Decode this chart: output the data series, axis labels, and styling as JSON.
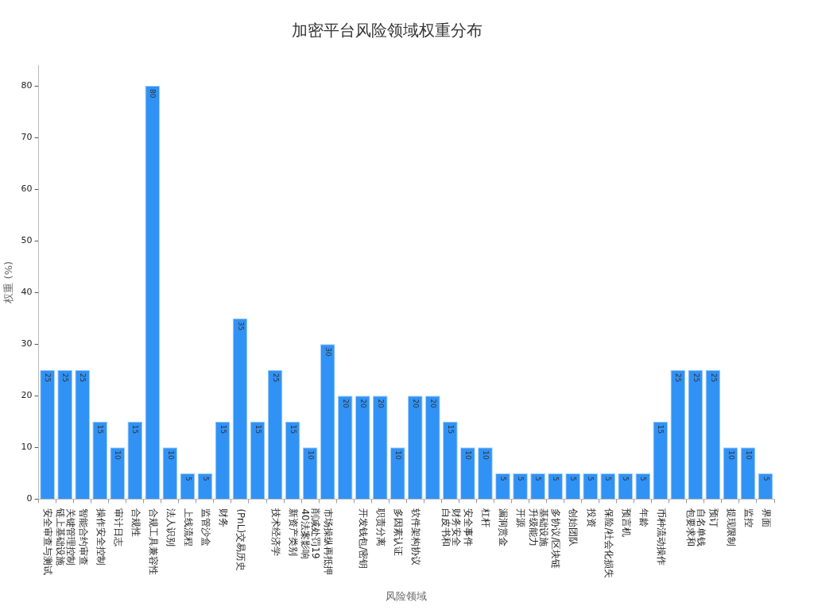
{
  "chart_data": {
    "type": "bar",
    "title": "加密平台风险领域权重分布",
    "xlabel": "风险领域",
    "ylabel": "权重 (%)",
    "categories": [
      "安全审查与测试",
      "关键管理控制链上基础设施",
      "智能合约审查",
      "操作安全控制",
      "审计日志",
      "合规性",
      "合规工具兼容性",
      "法人识别",
      "上线流程",
      "监管沙盒",
      "财务",
      "(PnL)交易历史",
      null,
      "技术经济学",
      "新资产类别",
      "削减处罚1940法案影响",
      "市场操纵再抵押",
      null,
      "开发钱包/密钥",
      "职责分离",
      "多因素认证",
      "软件架构协议",
      null,
      "财务安全白皮书和",
      "安全事件",
      "杠杆",
      "漏洞赏金",
      "开源",
      "基础设施升级能力",
      "多协议/区块链",
      "创始团队",
      "投资",
      "保险/社会化损失",
      "预言机",
      "年龄",
      "币种流动操作",
      null,
      "自名单钱包要求和",
      "预订",
      "提现限制",
      "监控",
      "界面"
    ],
    "values": [
      25,
      25,
      25,
      15,
      10,
      15,
      80,
      10,
      5,
      5,
      15,
      35,
      15,
      25,
      15,
      10,
      30,
      20,
      20,
      20,
      10,
      20,
      20,
      15,
      10,
      10,
      5,
      5,
      5,
      5,
      5,
      5,
      5,
      5,
      5,
      15,
      25,
      25,
      25,
      10,
      10,
      5
    ],
    "color": "#3192f5",
    "ylim": [
      0,
      84
    ],
    "yticks": [
      0,
      10,
      20,
      30,
      40,
      50,
      60,
      70,
      80
    ],
    "grid": false,
    "legend": false,
    "data_labels": true
  }
}
